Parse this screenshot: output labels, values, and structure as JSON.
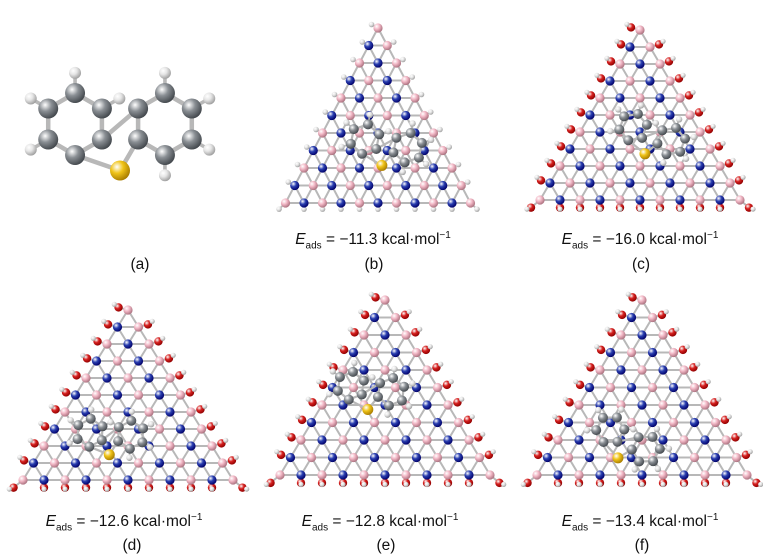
{
  "panels": [
    {
      "id": "a",
      "label": "(a)",
      "energy": null
    },
    {
      "id": "b",
      "label": "(b)",
      "energy": "= −11.3 kcal·mol"
    },
    {
      "id": "c",
      "label": "(c)",
      "energy": "= −16.0 kcal·mol"
    },
    {
      "id": "d",
      "label": "(d)",
      "energy": "= −12.6 kcal·mol"
    },
    {
      "id": "e",
      "label": "(e)",
      "energy": "= −12.8 kcal·mol"
    },
    {
      "id": "f",
      "label": "(f)",
      "energy": "= −13.4 kcal·mol"
    }
  ],
  "energy_symbol": "E",
  "energy_subscript": "ads",
  "energy_exponent": "−1",
  "colors": {
    "carbon": "#8a8f94",
    "hydrogen": "#e6e6e6",
    "sulfur": "#f0c419",
    "boron": "#f2b8c6",
    "nitrogen": "#2a3fb0",
    "oxygen": "#d6201f",
    "bond": "#b8b8b8"
  }
}
